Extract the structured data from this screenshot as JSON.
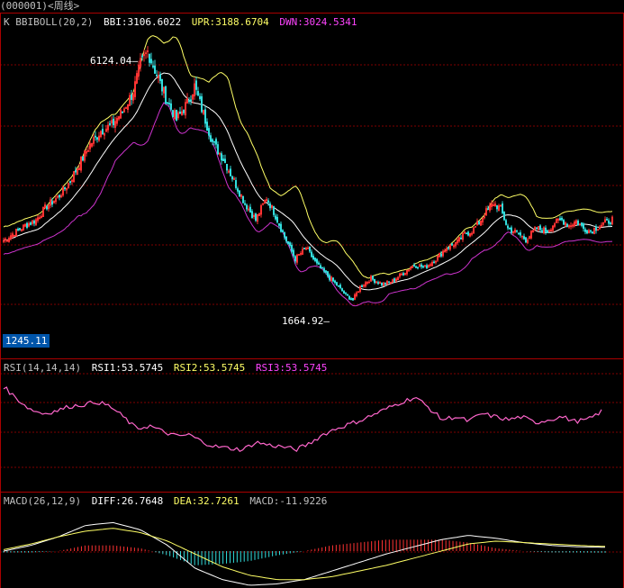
{
  "title_bar": "(000001)<周线>",
  "panels": {
    "main": {
      "indicator": "K  BBIBOLL(20,2)",
      "bbi": "BBI:3106.6022",
      "upr": "UPR:3188.6704",
      "dwn": "DWN:3024.5341",
      "high_label": "6124.04",
      "low_label": "1664.92",
      "axis_label": "1245.11"
    },
    "rsi": {
      "indicator": "RSI(14,14,14)",
      "rsi1": "RSI1:53.5745",
      "rsi2": "RSI2:53.5745",
      "rsi3": "RSI3:53.5745"
    },
    "macd": {
      "indicator": "MACD(26,12,9)",
      "diff": "DIFF:26.7648",
      "dea": "DEA:32.7261",
      "macd": "MACD:-11.9226"
    }
  },
  "colors": {
    "up": "#ff3333",
    "down": "#33dddd",
    "bbi": "#ffffff",
    "upr": "#ffff66",
    "dwn": "#cc33cc",
    "rsi": "#ff66cc",
    "grid": "#800000",
    "panel_border": "#aa0000"
  },
  "chart_data": [
    {
      "type": "candlestick",
      "title": "(000001)<周线>",
      "series_labels": [
        "BBI",
        "UPR",
        "DWN"
      ],
      "price_path": [
        [
          0,
          2730
        ],
        [
          5,
          2850
        ],
        [
          12,
          3000
        ],
        [
          18,
          3100
        ],
        [
          24,
          3350
        ],
        [
          30,
          3500
        ],
        [
          36,
          3750
        ],
        [
          42,
          4100
        ],
        [
          48,
          4450
        ],
        [
          54,
          4700
        ],
        [
          60,
          4800
        ],
        [
          66,
          5050
        ],
        [
          72,
          5400
        ],
        [
          76,
          5900
        ],
        [
          80,
          6124
        ],
        [
          84,
          5800
        ],
        [
          90,
          5300
        ],
        [
          96,
          4900
        ],
        [
          102,
          5200
        ],
        [
          106,
          5500
        ],
        [
          110,
          5100
        ],
        [
          116,
          4500
        ],
        [
          122,
          4200
        ],
        [
          128,
          3800
        ],
        [
          134,
          3400
        ],
        [
          140,
          3100
        ],
        [
          146,
          3500
        ],
        [
          150,
          3250
        ],
        [
          156,
          2800
        ],
        [
          162,
          2400
        ],
        [
          168,
          2600
        ],
        [
          174,
          2300
        ],
        [
          180,
          2100
        ],
        [
          186,
          1900
        ],
        [
          190,
          1750
        ],
        [
          194,
          1665
        ],
        [
          198,
          1900
        ],
        [
          204,
          2050
        ],
        [
          210,
          1950
        ],
        [
          216,
          2000
        ],
        [
          222,
          2150
        ],
        [
          228,
          2300
        ],
        [
          234,
          2250
        ],
        [
          240,
          2400
        ],
        [
          246,
          2600
        ],
        [
          252,
          2700
        ],
        [
          256,
          2850
        ],
        [
          260,
          2900
        ],
        [
          264,
          3050
        ],
        [
          268,
          3250
        ],
        [
          272,
          3400
        ],
        [
          276,
          3300
        ],
        [
          280,
          2950
        ],
        [
          286,
          2850
        ],
        [
          290,
          2750
        ],
        [
          296,
          2950
        ],
        [
          302,
          2900
        ],
        [
          306,
          3050
        ],
        [
          310,
          3100
        ],
        [
          314,
          3000
        ],
        [
          318,
          3080
        ],
        [
          322,
          2950
        ],
        [
          326,
          2900
        ],
        [
          330,
          2980
        ],
        [
          334,
          3050
        ],
        [
          338,
          3110
        ]
      ],
      "annotations": [
        "6124.04",
        "1664.92",
        "1245.11"
      ],
      "rsi_values": [
        70,
        62,
        55,
        52,
        54,
        57,
        58,
        60,
        57,
        50,
        42,
        44,
        40,
        37,
        38,
        33,
        30,
        29,
        28,
        33,
        31,
        30,
        28,
        32,
        38,
        42,
        45,
        48,
        52,
        56,
        60,
        63,
        56,
        48,
        50,
        47,
        52,
        50,
        48,
        50,
        46,
        48,
        50,
        47,
        48,
        53.5745
      ],
      "macd": {
        "diff": [
          0,
          40,
          100,
          180,
          200,
          150,
          40,
          -120,
          -200,
          -240,
          -230,
          -200,
          -140,
          -80,
          -20,
          30,
          80,
          110,
          90,
          60,
          40,
          30,
          26.7648
        ],
        "dea": [
          10,
          50,
          100,
          140,
          160,
          130,
          70,
          -20,
          -110,
          -170,
          -200,
          -200,
          -180,
          -140,
          -100,
          -50,
          0,
          50,
          70,
          60,
          50,
          40,
          32.7261
        ],
        "hist": [
          -10,
          -10,
          0,
          40,
          40,
          20,
          -30,
          -100,
          -90,
          -70,
          -30,
          0,
          40,
          60,
          80,
          80,
          80,
          60,
          20,
          0,
          -10,
          -10,
          -11.9226
        ]
      }
    }
  ]
}
